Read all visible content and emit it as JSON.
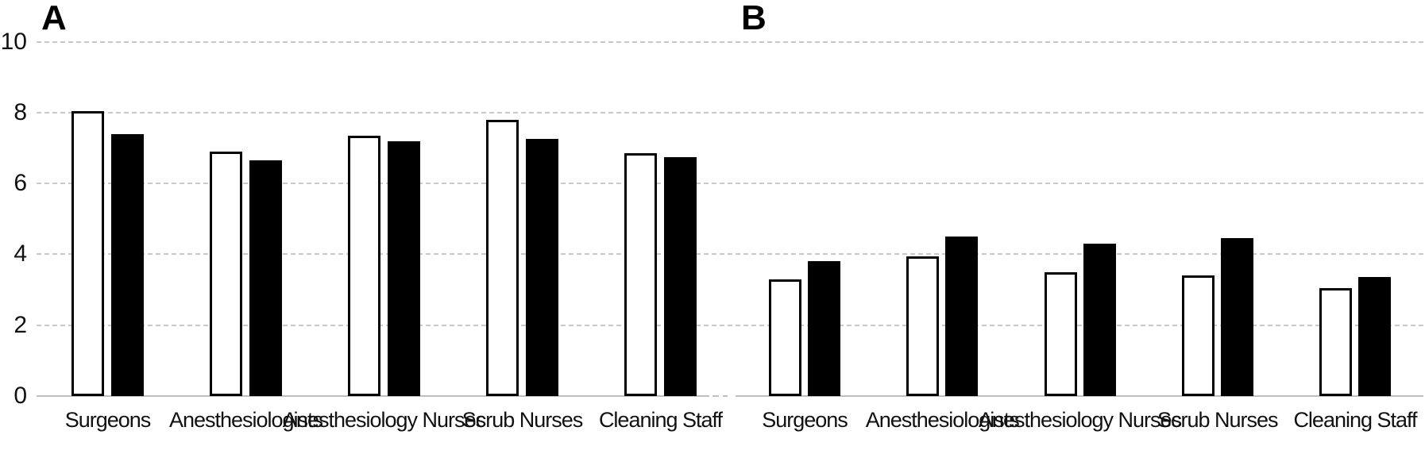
{
  "figure_type": "two-panel grouped bar chart",
  "y_axis": {
    "range": [
      0,
      10
    ],
    "tick_values": [
      0,
      2,
      4,
      6,
      8,
      10
    ],
    "tick_labels": [
      "0",
      "2",
      "4",
      "6",
      "8",
      "10"
    ],
    "gridlines": "horizontal dashed at each tick above zero"
  },
  "colors": {
    "background": "#ffffff",
    "bar_open_fill": "#ffffff",
    "bar_open_border": "#000000",
    "bar_solid_fill": "#000000",
    "gridline": "#c9c9c9",
    "axis_line": "#bfbfbf",
    "text": "#111111"
  },
  "chart_data": [
    {
      "type": "bar",
      "panel_label": "A",
      "categories": [
        "Surgeons",
        "Anesthesiologists",
        "Anesthesiology Nurses",
        "Scrub Nurses",
        "Cleaning Staff"
      ],
      "series": [
        {
          "name": "white-open-bars",
          "values": [
            8.05,
            6.9,
            7.35,
            7.8,
            6.85
          ]
        },
        {
          "name": "black-solid-bars",
          "values": [
            7.4,
            6.65,
            7.2,
            7.25,
            6.75
          ]
        }
      ],
      "ylim": [
        0,
        10
      ],
      "legend": "none shown"
    },
    {
      "type": "bar",
      "panel_label": "B",
      "categories": [
        "Surgeons",
        "Anesthesiologists",
        "Anesthesiology Nurses",
        "Scrub Nurses",
        "Cleaning Staff"
      ],
      "series": [
        {
          "name": "white-open-bars",
          "values": [
            3.3,
            3.95,
            3.5,
            3.4,
            3.05
          ]
        },
        {
          "name": "black-solid-bars",
          "values": [
            3.8,
            4.5,
            4.3,
            4.45,
            3.35
          ]
        }
      ],
      "ylim": [
        0,
        10
      ],
      "legend": "none shown"
    }
  ]
}
